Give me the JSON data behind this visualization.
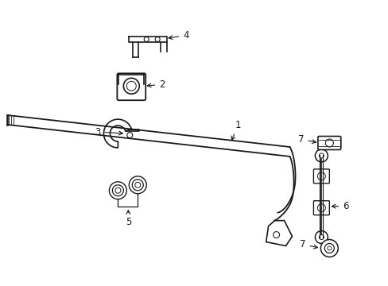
{
  "bg_color": "#ffffff",
  "line_color": "#1a1a1a",
  "figsize": [
    4.89,
    3.6
  ],
  "dpi": 100,
  "labels": {
    "1": [
      270,
      113,
      280,
      128
    ],
    "2": [
      195,
      98,
      178,
      103
    ],
    "3": [
      108,
      163,
      125,
      163
    ],
    "4": [
      235,
      45,
      221,
      52
    ],
    "5": [
      175,
      228,
      162,
      215
    ],
    "6": [
      388,
      210,
      373,
      210
    ],
    "7t": [
      388,
      183,
      375,
      183
    ],
    "7b": [
      388,
      310,
      373,
      310
    ]
  }
}
